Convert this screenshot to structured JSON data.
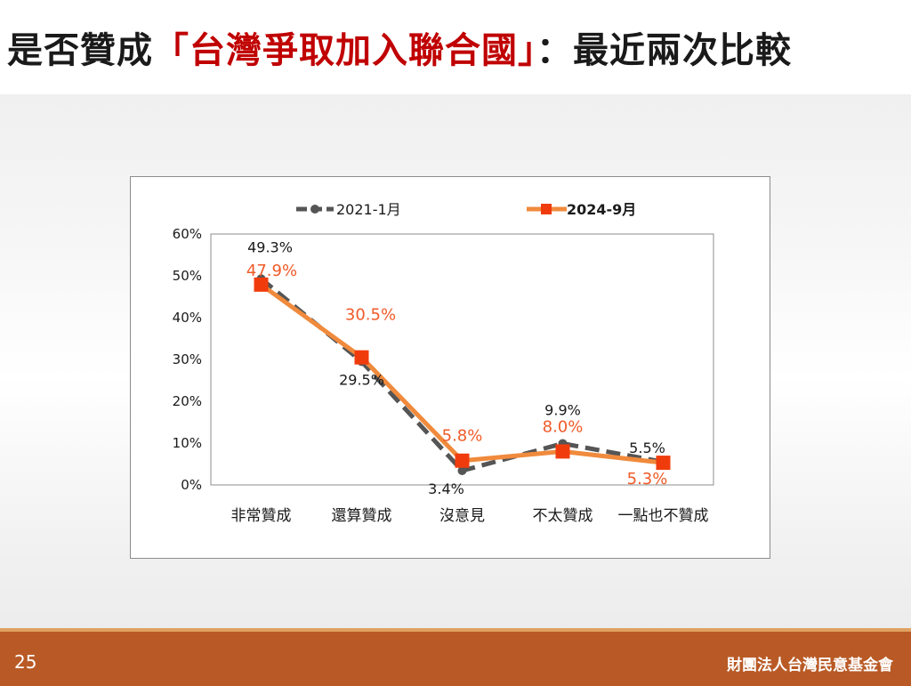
{
  "slide": {
    "title_prefix": "是否贊成",
    "title_highlight": "「台灣爭取加入聯合國」",
    "title_suffix": "：最近兩次比較",
    "page_number": "25",
    "organization": "財團法人台灣民意基金會"
  },
  "colors": {
    "series_2021": "#555555",
    "series_2024": "#f08a3c",
    "series_2024_marker": "#f03c0c",
    "series_2024_label": "#f05a28",
    "title_highlight": "#c00000",
    "footer": "#b95a26"
  },
  "chart_data": {
    "type": "line",
    "categories": [
      "非常贊成",
      "還算贊成",
      "沒意見",
      "不太贊成",
      "一點也不贊成"
    ],
    "ylim": [
      0,
      60
    ],
    "yticks": [
      "0%",
      "10%",
      "20%",
      "30%",
      "40%",
      "50%",
      "60%"
    ],
    "legend_position": "top",
    "grid": false,
    "series": [
      {
        "name": "2021-1月",
        "values": [
          49.3,
          29.5,
          3.4,
          9.9,
          5.5
        ],
        "labels": [
          "49.3%",
          "29.5%",
          "3.4%",
          "9.9%",
          "5.5%"
        ],
        "style": "dashed",
        "marker": "circle"
      },
      {
        "name": "2024-9月",
        "values": [
          47.9,
          30.5,
          5.8,
          8.0,
          5.3
        ],
        "labels": [
          "47.9%",
          "30.5%",
          "5.8%",
          "8.0%",
          "5.3%"
        ],
        "style": "solid",
        "marker": "square"
      }
    ]
  }
}
